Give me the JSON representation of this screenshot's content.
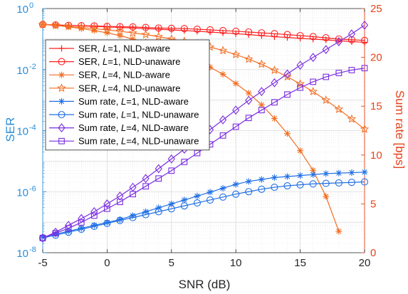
{
  "chart_data": {
    "type": "line",
    "xlabel": "SNR (dB)",
    "ylabel_left": "SER",
    "ylabel_right": "Sum rate [bps]",
    "xlim": [
      -5,
      20
    ],
    "ylim_left": [
      1e-08,
      1
    ],
    "yscale_left": "log",
    "ylim_right": [
      0,
      25
    ],
    "grid": "on (major and minor)",
    "legend_position": "top-left",
    "x_ticks": [
      "-5",
      "0",
      "5",
      "10",
      "15",
      "20"
    ],
    "left_ticks": [
      {
        "base": "10",
        "exp": "0",
        "value": 1
      },
      {
        "base": "10",
        "exp": "-2",
        "value": 0.01
      },
      {
        "base": "10",
        "exp": "-4",
        "value": 0.0001
      },
      {
        "base": "10",
        "exp": "-6",
        "value": 1e-06
      },
      {
        "base": "10",
        "exp": "-8",
        "value": 1e-08
      }
    ],
    "right_ticks": [
      "0",
      "5",
      "10",
      "15",
      "20",
      "25"
    ],
    "colors": {
      "red": "#ff1f1f",
      "orange": "#f26d21",
      "blue": "#1f6fe5",
      "purple": "#7a2de0",
      "left_axis": "#2b8fd8",
      "right_axis": "#e8431b"
    },
    "x": [
      -5,
      -4,
      -3,
      -2,
      -1,
      0,
      1,
      2,
      3,
      4,
      5,
      6,
      7,
      8,
      9,
      10,
      11,
      12,
      13,
      14,
      15,
      16,
      17,
      18,
      19,
      20
    ],
    "series": [
      {
        "legend": {
          "prefix": "SER, ",
          "var": "L",
          "suffix": "=1, NLD-aware"
        },
        "axis": "left",
        "color": "red",
        "marker": "plus",
        "x": [
          -5,
          -4,
          -3,
          -2,
          -1,
          0,
          1,
          2,
          3,
          4,
          5,
          6,
          7,
          8,
          9,
          10,
          11,
          12,
          13,
          14,
          15,
          16,
          17,
          18,
          19,
          20
        ],
        "values": [
          0.3,
          0.29,
          0.28,
          0.27,
          0.26,
          0.25,
          0.24,
          0.23,
          0.22,
          0.21,
          0.2,
          0.19,
          0.18,
          0.17,
          0.16,
          0.15,
          0.14,
          0.13,
          0.12,
          0.113,
          0.106,
          0.1,
          0.094,
          0.088,
          0.083,
          0.078
        ]
      },
      {
        "legend": {
          "prefix": "SER, ",
          "var": "L",
          "suffix": "=1, NLD-unaware"
        },
        "axis": "left",
        "color": "red",
        "marker": "circle",
        "x": [
          -5,
          -4,
          -3,
          -2,
          -1,
          0,
          1,
          2,
          3,
          4,
          5,
          6,
          7,
          8,
          9,
          10,
          11,
          12,
          13,
          14,
          15,
          16,
          17,
          18,
          19,
          20
        ],
        "values": [
          0.3,
          0.29,
          0.28,
          0.275,
          0.27,
          0.26,
          0.255,
          0.25,
          0.24,
          0.23,
          0.225,
          0.22,
          0.21,
          0.2,
          0.19,
          0.18,
          0.17,
          0.16,
          0.15,
          0.14,
          0.13,
          0.12,
          0.11,
          0.1,
          0.095,
          0.09
        ]
      },
      {
        "legend": {
          "prefix": "SER, ",
          "var": "L",
          "suffix": "=4, NLD-aware"
        },
        "axis": "left",
        "color": "orange",
        "marker": "asterisk",
        "x": [
          -5,
          -4,
          -3,
          -2,
          -1,
          0,
          1,
          2,
          3,
          4,
          5,
          6,
          7,
          8,
          9,
          10,
          11,
          12,
          13,
          14,
          15,
          16,
          17,
          18
        ],
        "values": [
          0.3,
          0.28,
          0.25,
          0.22,
          0.19,
          0.16,
          0.13,
          0.1,
          0.08,
          0.06,
          0.045,
          0.03,
          0.02,
          0.012,
          0.007,
          0.0035,
          0.0017,
          0.0007,
          0.00025,
          8e-05,
          2.2e-05,
          5e-06,
          7e-07,
          5e-08
        ]
      },
      {
        "legend": {
          "prefix": "SER, ",
          "var": "L",
          "suffix": "=4, NLD-unaware"
        },
        "axis": "left",
        "color": "orange",
        "marker": "star",
        "x": [
          -5,
          -4,
          -3,
          -2,
          -1,
          0,
          1,
          2,
          3,
          4,
          5,
          6,
          7,
          8,
          9,
          10,
          11,
          12,
          13,
          14,
          15,
          16,
          17,
          18,
          19,
          20
        ],
        "values": [
          0.3,
          0.28,
          0.26,
          0.24,
          0.22,
          0.2,
          0.18,
          0.16,
          0.14,
          0.12,
          0.1,
          0.085,
          0.07,
          0.055,
          0.042,
          0.031,
          0.022,
          0.015,
          0.0095,
          0.0058,
          0.0034,
          0.0019,
          0.001,
          0.0005,
          0.00024,
          0.000112
        ]
      },
      {
        "legend": {
          "prefix": "Sum rate, ",
          "var": "L",
          "suffix": "=1, NLD-aware"
        },
        "axis": "right",
        "color": "blue",
        "marker": "asterisk",
        "x": [
          -5,
          -4,
          -3,
          -2,
          -1,
          0,
          1,
          2,
          3,
          4,
          5,
          6,
          7,
          8,
          9,
          10,
          11,
          12,
          13,
          14,
          15,
          16,
          17,
          18,
          19,
          20
        ],
        "values": [
          1.6,
          1.9,
          2.2,
          2.5,
          2.8,
          3.1,
          3.4,
          3.8,
          4.2,
          4.6,
          5.0,
          5.4,
          5.8,
          6.2,
          6.6,
          7.0,
          7.3,
          7.5,
          7.7,
          7.8,
          7.9,
          8.0,
          8.1,
          8.15,
          8.2,
          8.25
        ]
      },
      {
        "legend": {
          "prefix": "Sum rate, ",
          "var": "L",
          "suffix": "=1, NLD-unaware"
        },
        "axis": "right",
        "color": "blue",
        "marker": "circle",
        "x": [
          -5,
          -4,
          -3,
          -2,
          -1,
          0,
          1,
          2,
          3,
          4,
          5,
          6,
          7,
          8,
          9,
          10,
          11,
          12,
          13,
          14,
          15,
          16,
          17,
          18,
          19,
          20
        ],
        "values": [
          1.5,
          1.8,
          2.1,
          2.4,
          2.7,
          3.0,
          3.3,
          3.6,
          3.9,
          4.2,
          4.5,
          4.8,
          5.1,
          5.4,
          5.7,
          6.0,
          6.25,
          6.5,
          6.7,
          6.85,
          6.95,
          7.05,
          7.1,
          7.15,
          7.2,
          7.25
        ]
      },
      {
        "legend": {
          "prefix": "Sum rate, ",
          "var": "L",
          "suffix": "=4, NLD-aware"
        },
        "axis": "right",
        "color": "purple",
        "marker": "diamond",
        "x": [
          -5,
          -4,
          -3,
          -2,
          -1,
          0,
          1,
          2,
          3,
          4,
          5,
          6,
          7,
          8,
          9,
          10,
          11,
          12,
          13,
          14,
          15,
          16,
          17,
          18,
          19,
          20
        ],
        "values": [
          1.5,
          2.1,
          2.8,
          3.5,
          4.2,
          5.0,
          5.8,
          6.7,
          7.6,
          8.6,
          9.6,
          10.6,
          11.6,
          12.6,
          13.6,
          14.6,
          15.6,
          16.5,
          17.4,
          18.3,
          19.2,
          20.0,
          20.8,
          21.6,
          22.4,
          23.3
        ]
      },
      {
        "legend": {
          "prefix": "Sum rate, ",
          "var": "L",
          "suffix": "=4, NLD-unaware"
        },
        "axis": "right",
        "color": "purple",
        "marker": "square",
        "x": [
          -5,
          -4,
          -3,
          -2,
          -1,
          0,
          1,
          2,
          3,
          4,
          5,
          6,
          7,
          8,
          9,
          10,
          11,
          12,
          13,
          14,
          15,
          16,
          17,
          18,
          19,
          20
        ],
        "values": [
          1.5,
          2.0,
          2.5,
          3.1,
          3.8,
          4.5,
          5.2,
          6.0,
          6.8,
          7.6,
          8.4,
          9.3,
          10.2,
          11.1,
          12.0,
          12.9,
          13.8,
          14.6,
          15.4,
          16.2,
          16.9,
          17.5,
          18.0,
          18.4,
          18.7,
          18.9
        ]
      }
    ]
  }
}
